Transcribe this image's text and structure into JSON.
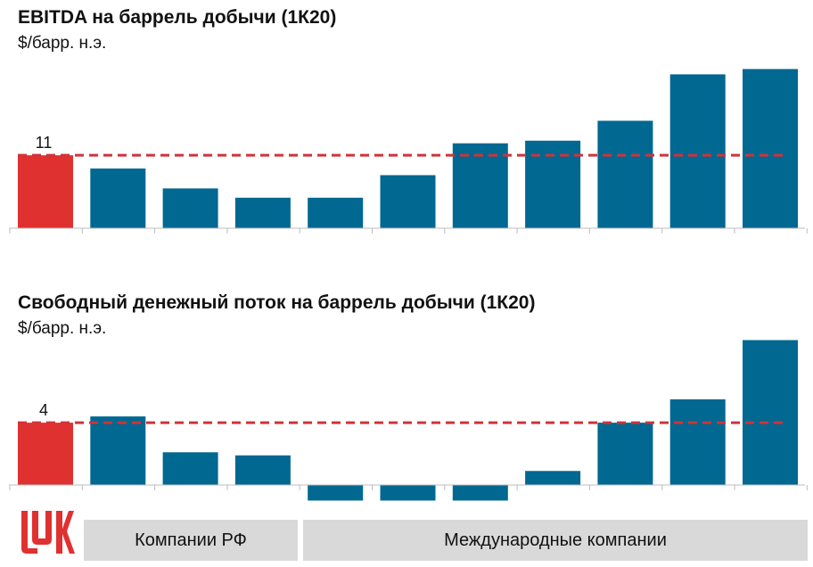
{
  "chart1": {
    "title": "EBITDA на баррель добычи (1К20)",
    "subtitle": "$/барр. н.э."
  },
  "chart2": {
    "title": "Свободный денежный поток на баррель добычи (1К20)",
    "subtitle": "$/барр. н.э."
  },
  "groups": {
    "russian": "Компании РФ",
    "international": "Международные компании"
  },
  "colors": {
    "highlight": "#e03131",
    "bar": "#006891",
    "reference_line": "#d0333a",
    "group_bg": "#d9d9d9"
  },
  "chart_data": [
    {
      "type": "bar",
      "title": "EBITDA на баррель добычи (1К20)",
      "ylabel": "$/барр. н.э.",
      "categories": [
        "",
        "",
        "",
        "",
        "",
        "",
        "",
        "",
        "",
        "",
        ""
      ],
      "values": [
        11,
        9,
        6,
        4.6,
        4.6,
        8,
        12.8,
        13.2,
        16.2,
        23.2,
        24
      ],
      "highlight_index": 0,
      "data_labels": [
        {
          "index": 0,
          "text": "11"
        }
      ],
      "reference_line": {
        "value": 11,
        "style": "dashed"
      },
      "ylim": [
        0,
        25
      ],
      "grid": false
    },
    {
      "type": "bar",
      "title": "Свободный денежный поток на баррель добычи (1К20)",
      "ylabel": "$/барр. н.э.",
      "categories": [
        "",
        "",
        "",
        "",
        "",
        "",
        "",
        "",
        "",
        "",
        ""
      ],
      "values": [
        4,
        4.4,
        2.1,
        1.9,
        -1,
        -1,
        -1,
        0.9,
        4,
        5.5,
        9.3
      ],
      "highlight_index": 0,
      "data_labels": [
        {
          "index": 0,
          "text": "4"
        }
      ],
      "reference_line": {
        "value": 4,
        "style": "dashed"
      },
      "ylim": [
        -1.2,
        9.5
      ],
      "grid": false
    }
  ]
}
